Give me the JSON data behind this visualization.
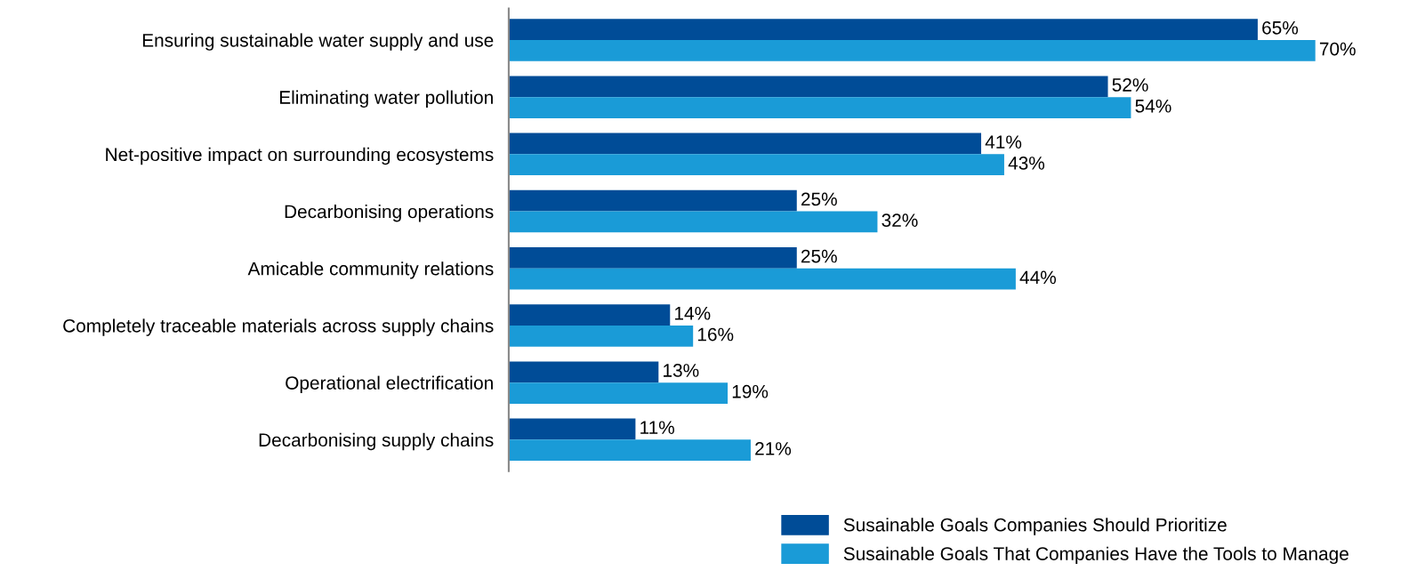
{
  "chart_data": {
    "type": "bar",
    "orientation": "horizontal",
    "categories": [
      "Ensuring sustainable water supply and use",
      "Eliminating water pollution",
      "Net-positive impact on surrounding ecosystems",
      "Decarbonising operations",
      "Amicable community relations",
      "Completely traceable materials across supply chains",
      "Operational electrification",
      "Decarbonising supply chains"
    ],
    "series": [
      {
        "name": "Susainable Goals Companies Should Prioritize",
        "color": "#004c97",
        "values": [
          65,
          52,
          41,
          25,
          25,
          14,
          13,
          11
        ],
        "value_labels": [
          "65%",
          "52%",
          "41%",
          "25%",
          "25%",
          "14%",
          "13%",
          "11%"
        ]
      },
      {
        "name": "Susainable Goals That Companies Have the Tools to Manage",
        "color": "#1a9bd7",
        "values": [
          70,
          54,
          43,
          32,
          44,
          16,
          19,
          21
        ],
        "value_labels": [
          "70%",
          "54%",
          "43%",
          "32%",
          "44%",
          "16%",
          "19%",
          "21%"
        ]
      }
    ],
    "legend": "bottom",
    "grid": false,
    "tick_labels": "y"
  }
}
